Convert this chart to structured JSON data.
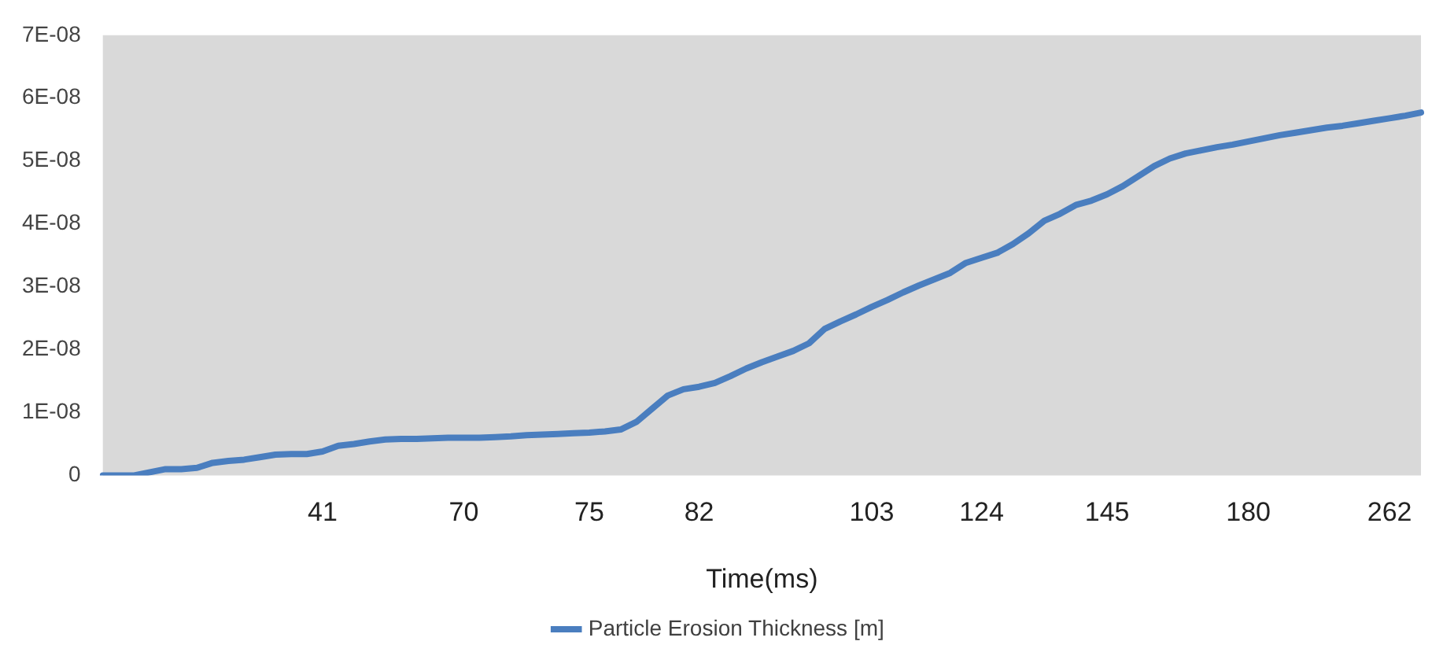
{
  "chart_data": {
    "type": "line",
    "xlabel": "Time(ms)",
    "categories": [
      null,
      null,
      null,
      null,
      null,
      null,
      null,
      null,
      null,
      null,
      null,
      null,
      null,
      null,
      "41",
      null,
      null,
      null,
      null,
      null,
      null,
      null,
      null,
      "70",
      null,
      null,
      null,
      null,
      null,
      null,
      null,
      "75",
      null,
      null,
      null,
      null,
      null,
      null,
      "82",
      null,
      null,
      null,
      null,
      null,
      null,
      null,
      null,
      null,
      null,
      "103",
      null,
      null,
      null,
      null,
      null,
      null,
      "124",
      null,
      null,
      null,
      null,
      null,
      null,
      null,
      "145",
      null,
      null,
      null,
      null,
      null,
      null,
      null,
      null,
      "180",
      null,
      null,
      null,
      null,
      null,
      null,
      null,
      null,
      "262",
      null,
      null
    ],
    "series": [
      {
        "name": "Particle Erosion Thickness [m]",
        "color": "#4a7ebf",
        "values": [
          0,
          0,
          0,
          5e-10,
          1e-09,
          1e-09,
          1.2e-09,
          2e-09,
          2.3e-09,
          2.5e-09,
          2.9e-09,
          3.3e-09,
          3.4e-09,
          3.4e-09,
          3.8e-09,
          4.7e-09,
          5e-09,
          5.4e-09,
          5.7e-09,
          5.8e-09,
          5.8e-09,
          5.9e-09,
          6e-09,
          6e-09,
          6e-09,
          6.1e-09,
          6.2e-09,
          6.4e-09,
          6.5e-09,
          6.6e-09,
          6.7e-09,
          6.8e-09,
          7e-09,
          7.3e-09,
          8.5e-09,
          1.06e-08,
          1.27e-08,
          1.37e-08,
          1.41e-08,
          1.47e-08,
          1.58e-08,
          1.7e-08,
          1.8e-08,
          1.89e-08,
          1.98e-08,
          2.1e-08,
          2.33e-08,
          2.45e-08,
          2.56e-08,
          2.68e-08,
          2.79e-08,
          2.91e-08,
          3.02e-08,
          3.12e-08,
          3.22e-08,
          3.38e-08,
          3.46e-08,
          3.54e-08,
          3.68e-08,
          3.85e-08,
          4.05e-08,
          4.16e-08,
          4.3e-08,
          4.37e-08,
          4.47e-08,
          4.6e-08,
          4.76e-08,
          4.92e-08,
          5.04e-08,
          5.12e-08,
          5.17e-08,
          5.22e-08,
          5.26e-08,
          5.31e-08,
          5.36e-08,
          5.41e-08,
          5.45e-08,
          5.49e-08,
          5.53e-08,
          5.56e-08,
          5.6e-08,
          5.64e-08,
          5.68e-08,
          5.72e-08,
          5.77e-08
        ]
      }
    ],
    "ylim": [
      0,
      7e-08
    ],
    "yticks": [
      {
        "value": 0,
        "label": "0"
      },
      {
        "value": 1e-08,
        "label": "1E-08"
      },
      {
        "value": 2e-08,
        "label": "2E-08"
      },
      {
        "value": 3e-08,
        "label": "3E-08"
      },
      {
        "value": 4e-08,
        "label": "4E-08"
      },
      {
        "value": 5e-08,
        "label": "5E-08"
      },
      {
        "value": 6e-08,
        "label": "6E-08"
      },
      {
        "value": 7e-08,
        "label": "7E-08"
      }
    ],
    "grid": false,
    "legend": "bottom",
    "marker": "none",
    "line_style": "solid"
  }
}
